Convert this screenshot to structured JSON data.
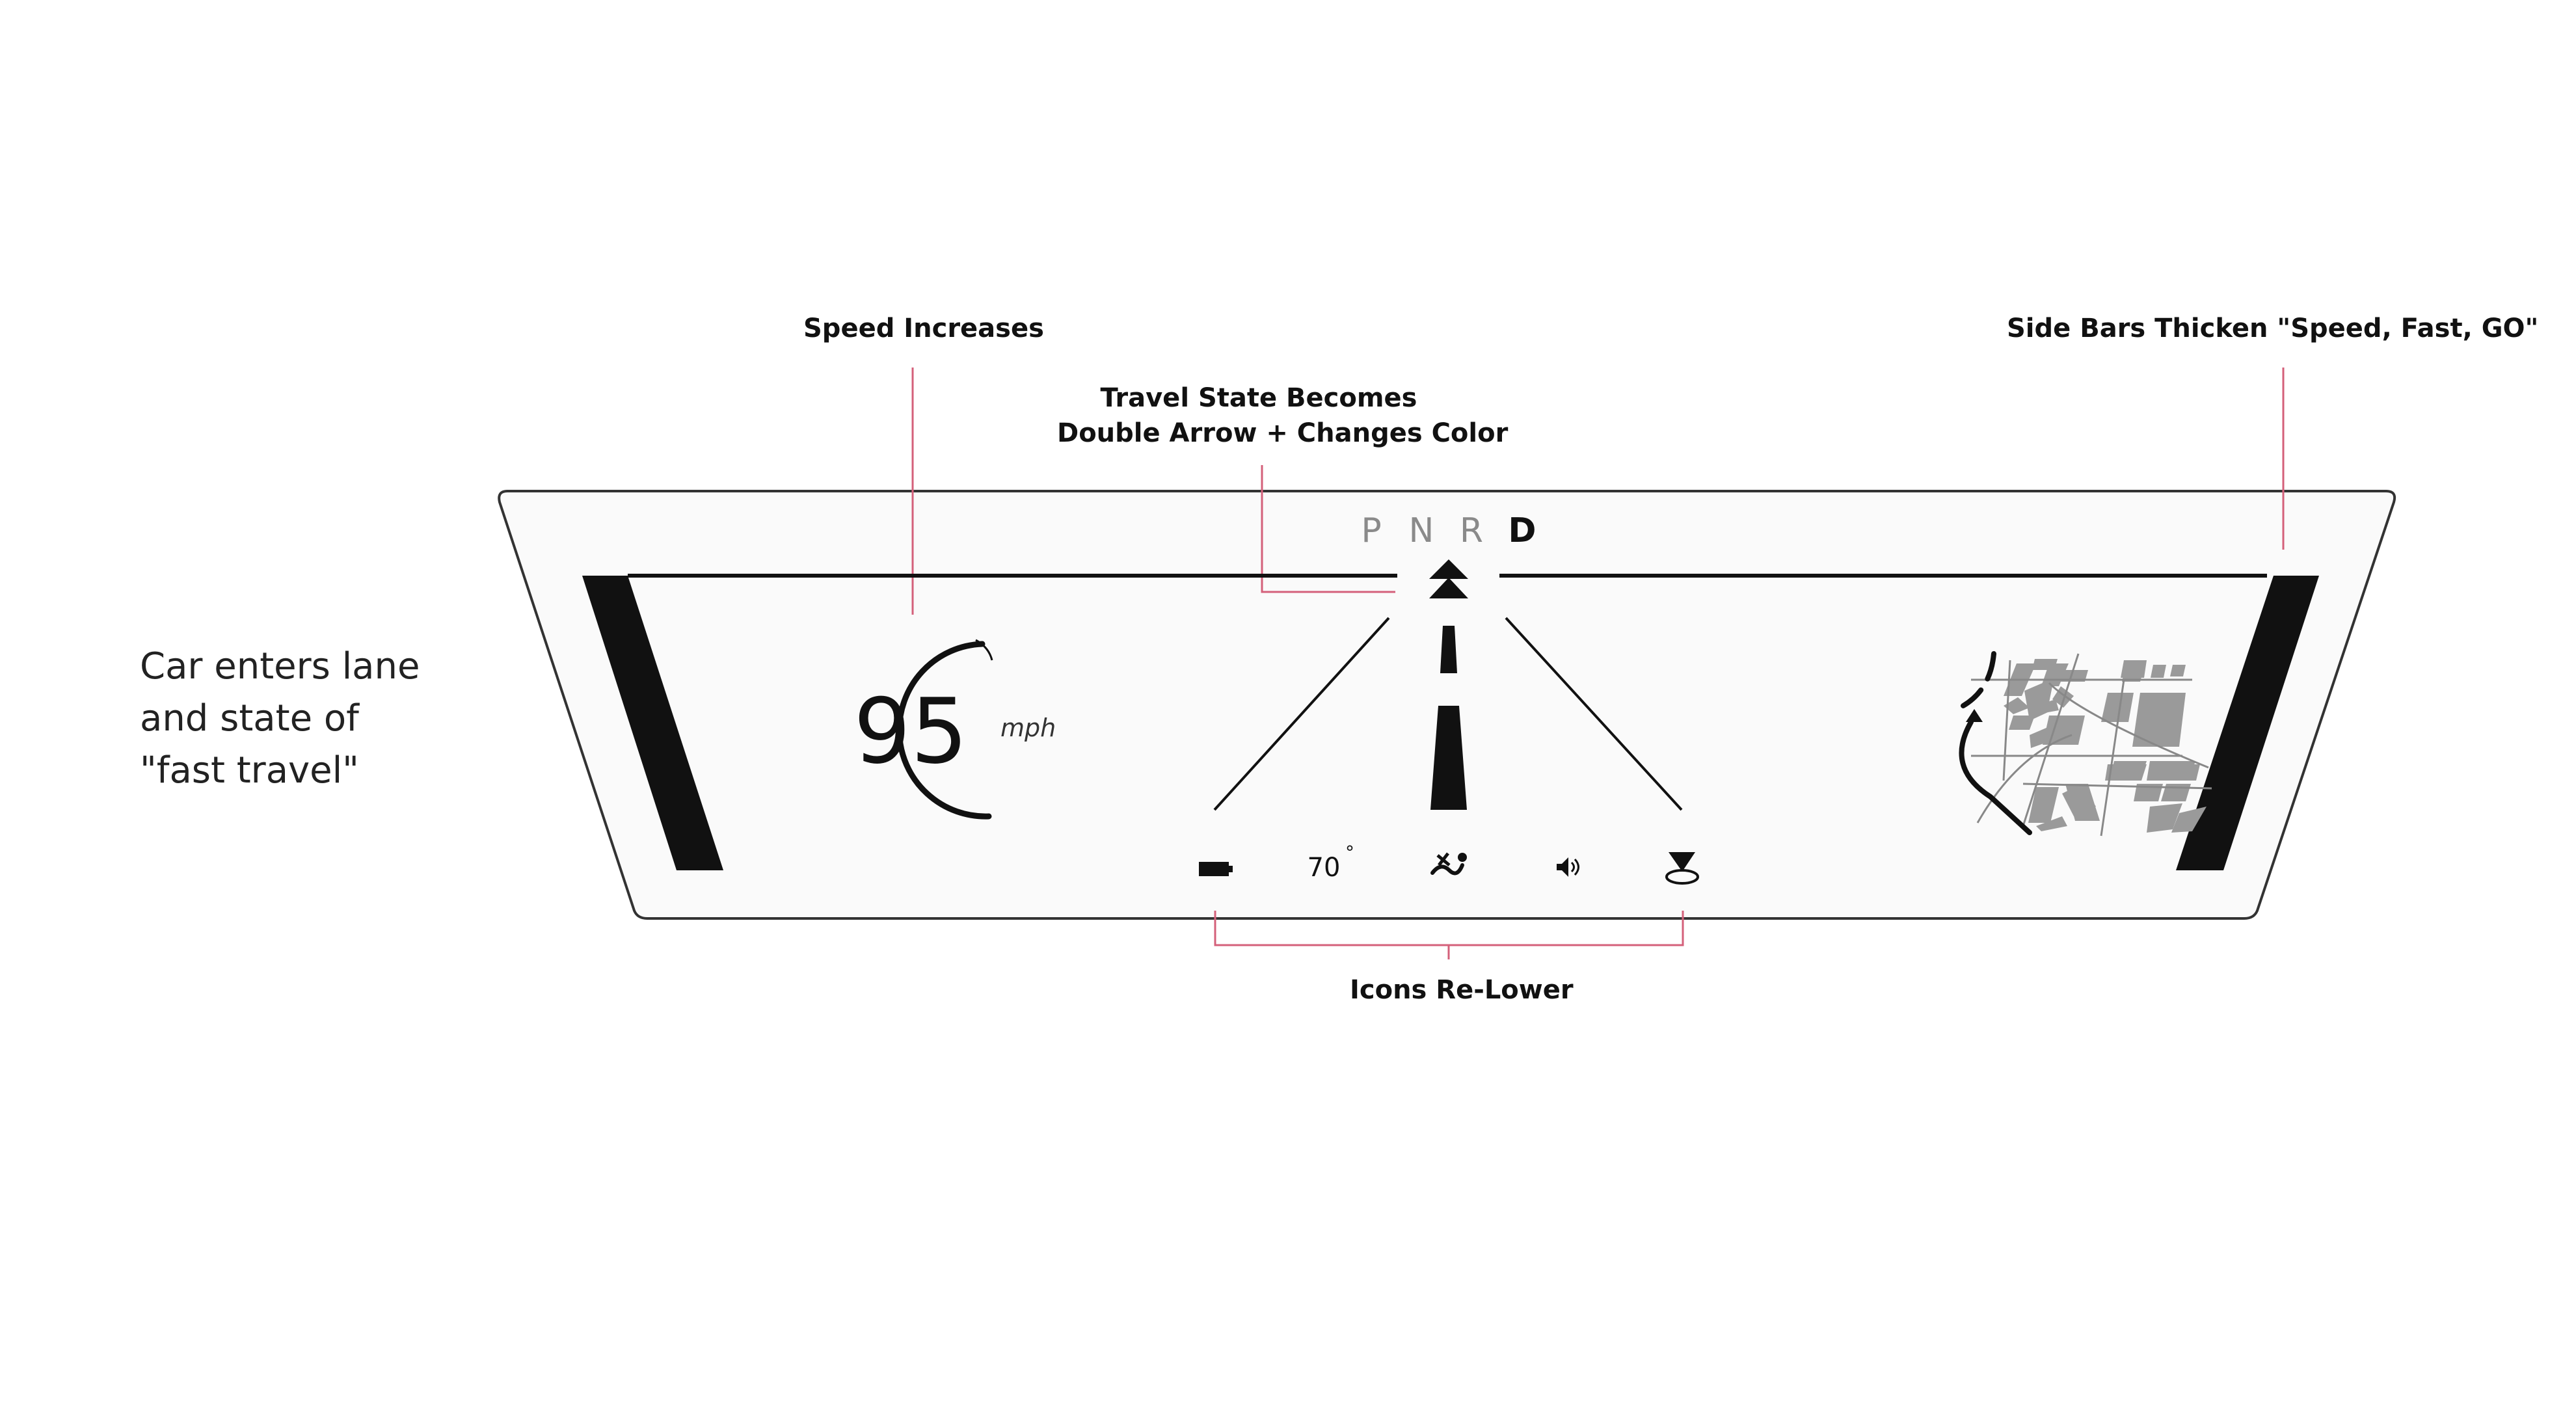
{
  "annotations": {
    "speed_increases": "Speed Increases",
    "travel_state_line1": "Travel State Becomes",
    "travel_state_line2": "Double Arrow + Changes Color",
    "side_bars": "Side Bars Thicken \"Speed, Fast, GO\"",
    "icons_relower": "Icons Re-Lower"
  },
  "description": {
    "line1": "Car enters lane",
    "line2": "and state of",
    "line3": "\"fast travel\""
  },
  "gear_selector": {
    "options": [
      "P",
      "N",
      "R",
      "D"
    ],
    "active": "D"
  },
  "speedometer": {
    "value": "95",
    "unit": "mph"
  },
  "status_bar": {
    "temperature": "70",
    "temperature_unit": "°",
    "icons": [
      "battery-icon",
      "temperature-readout",
      "climate-fan-icon",
      "volume-icon",
      "navigation-pin-icon"
    ]
  },
  "colors": {
    "callout_line": "#d4607a",
    "display_outline": "#333333",
    "display_fill": "#fafafa",
    "map_blocks": "#9a9a9a",
    "primary": "#111111",
    "dim_gear": "#8a8a8a"
  }
}
